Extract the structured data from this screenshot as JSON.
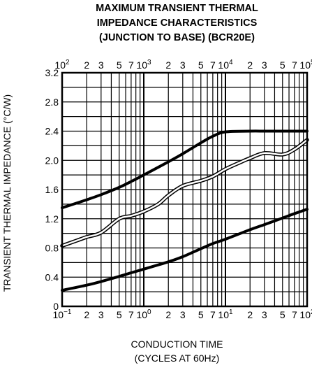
{
  "chart_data": {
    "type": "line",
    "title": [
      "MAXIMUM TRANSIENT THERMAL",
      "IMPEDANCE CHARACTERISTICS",
      "(JUNCTION TO BASE) (BCR20E)"
    ],
    "xlabel": [
      "CONDUCTION TIME",
      "(CYCLES AT 60Hz)"
    ],
    "ylabel": "TRANSIENT THERMAL IMPEDANCE  (°C/W)",
    "x_scale": "log",
    "xlim": [
      0.1,
      100
    ],
    "x2_scale": "log",
    "x2lim": [
      100,
      100000
    ],
    "ylim": [
      0,
      3.2
    ],
    "grid": true,
    "y_ticks": [
      "0",
      "0.4",
      "0.8",
      "1.2",
      "1.6",
      "2.0",
      "2.4",
      "2.8",
      "3.2"
    ],
    "bottom_tick_labels": [
      {
        "base": "10",
        "exp": "−1"
      },
      {
        "base": "2",
        "exp": ""
      },
      {
        "base": "3",
        "exp": ""
      },
      {
        "base": "5",
        "exp": ""
      },
      {
        "base": "7",
        "exp": ""
      },
      {
        "base": "10",
        "exp": "0"
      },
      {
        "base": "2",
        "exp": ""
      },
      {
        "base": "3",
        "exp": ""
      },
      {
        "base": "5",
        "exp": ""
      },
      {
        "base": "7",
        "exp": ""
      },
      {
        "base": "10",
        "exp": "1"
      },
      {
        "base": "2",
        "exp": ""
      },
      {
        "base": "3",
        "exp": ""
      },
      {
        "base": "5",
        "exp": ""
      },
      {
        "base": "7",
        "exp": ""
      },
      {
        "base": "10",
        "exp": "2"
      }
    ],
    "top_tick_labels": [
      {
        "base": "10",
        "exp": "2"
      },
      {
        "base": "2",
        "exp": ""
      },
      {
        "base": "3",
        "exp": ""
      },
      {
        "base": "5",
        "exp": ""
      },
      {
        "base": "7",
        "exp": ""
      },
      {
        "base": "10",
        "exp": "3"
      },
      {
        "base": "2",
        "exp": ""
      },
      {
        "base": "3",
        "exp": ""
      },
      {
        "base": "5",
        "exp": ""
      },
      {
        "base": "7",
        "exp": ""
      },
      {
        "base": "10",
        "exp": "4"
      },
      {
        "base": "2",
        "exp": ""
      },
      {
        "base": "3",
        "exp": ""
      },
      {
        "base": "5",
        "exp": ""
      },
      {
        "base": "7",
        "exp": ""
      },
      {
        "base": "10",
        "exp": "5"
      }
    ],
    "series": [
      {
        "axis": "bottom",
        "style": "solid",
        "x": [
          0.1,
          0.2,
          0.3,
          0.5,
          0.7,
          1,
          2,
          3,
          5,
          7,
          10,
          20,
          30,
          50,
          70,
          100
        ],
        "y": [
          0.22,
          0.29,
          0.34,
          0.41,
          0.46,
          0.51,
          0.61,
          0.68,
          0.79,
          0.86,
          0.92,
          1.05,
          1.12,
          1.21,
          1.27,
          1.33
        ]
      },
      {
        "axis": "top",
        "style": "solid",
        "x": [
          100,
          200,
          300,
          500,
          700,
          1000,
          2000,
          3000,
          5000,
          7000,
          10000,
          20000,
          30000,
          50000,
          70000,
          100000
        ],
        "y": [
          1.35,
          1.46,
          1.53,
          1.63,
          1.71,
          1.8,
          1.98,
          2.09,
          2.24,
          2.33,
          2.39,
          2.4,
          2.4,
          2.4,
          2.4,
          2.4
        ]
      },
      {
        "axis": "bottom",
        "style": "double",
        "x": [
          0.1,
          0.15,
          0.2,
          0.3,
          0.5,
          0.7,
          1,
          1.5,
          2,
          3,
          5,
          7,
          10,
          15,
          20,
          30,
          50,
          70,
          100
        ],
        "y": [
          0.83,
          0.9,
          0.95,
          1.01,
          1.2,
          1.24,
          1.3,
          1.4,
          1.52,
          1.65,
          1.72,
          1.78,
          1.88,
          1.97,
          2.03,
          2.1,
          2.08,
          2.15,
          2.28
        ]
      }
    ]
  }
}
